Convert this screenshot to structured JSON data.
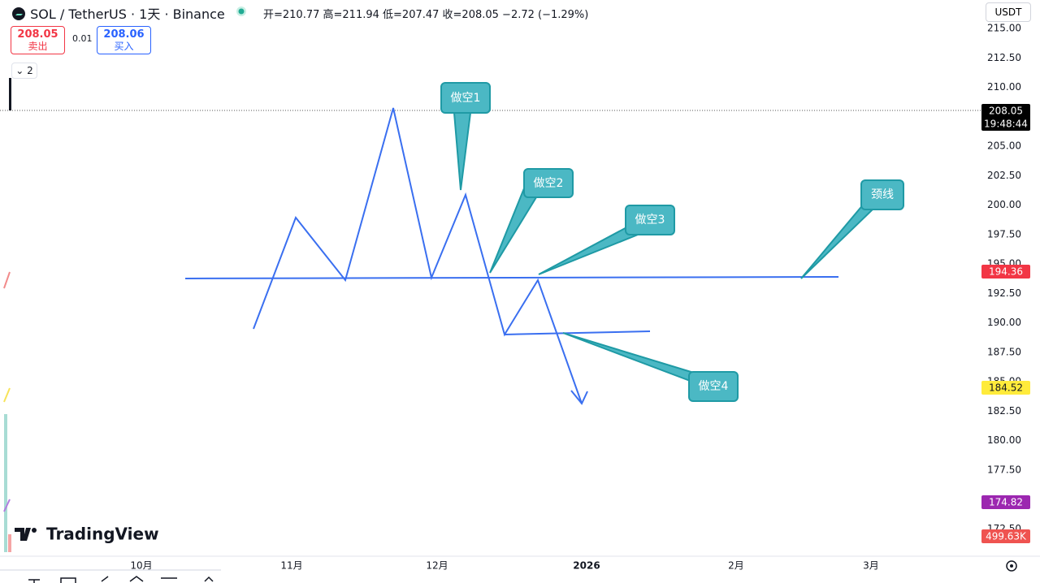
{
  "header": {
    "symbol": "SOL / TetherUS · 1天 · Binance",
    "ohlc": "开=210.77 高=211.94 低=207.47 收=208.05 −2.72 (−1.29%)",
    "currency": "USDT"
  },
  "trade": {
    "sell_price": "208.05",
    "sell_label": "卖出",
    "spread": "0.01",
    "buy_price": "208.06",
    "buy_label": "买入"
  },
  "layers": "2",
  "price_axis": {
    "ticks": [
      "215.00",
      "212.50",
      "210.00",
      "205.00",
      "202.50",
      "200.00",
      "197.50",
      "195.00",
      "192.50",
      "190.00",
      "187.50",
      "185.00",
      "182.50",
      "180.00",
      "177.50",
      "172.50"
    ],
    "badges": [
      {
        "text": "208.05",
        "sub": "19:48:44"
      },
      {
        "text": "194.36"
      },
      {
        "text": "184.52"
      },
      {
        "text": "174.82"
      },
      {
        "text": "499.63K"
      }
    ]
  },
  "time_axis": [
    "10月",
    "11月",
    "12月",
    "2026",
    "2月",
    "3月"
  ],
  "annotations": [
    "做空1",
    "做空2",
    "做空3",
    "颈线",
    "做空4"
  ],
  "logo": "TradingView"
}
